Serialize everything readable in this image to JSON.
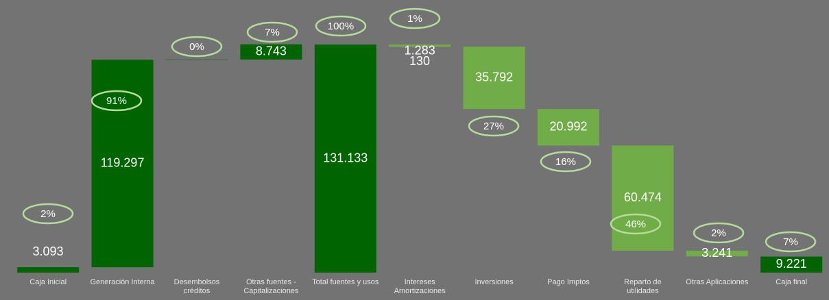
{
  "chart_data": {
    "type": "waterfall",
    "categories": [
      "Caja Inicial",
      "Generación Interna",
      "Desembolsos\ncréditos",
      "Otras fuentes -\nCapitalizaciones",
      "Total fuentes y usos",
      "Intereses\nAmortizaciones",
      "Inversiones",
      "Pago  Imptos",
      "Reparto de\nutilidades",
      "Otras Aplicaciones",
      "Caja final"
    ],
    "values": [
      3093,
      119297,
      130,
      8743,
      131133,
      1283,
      35792,
      20992,
      60474,
      3241,
      9221
    ],
    "value_labels": [
      "3.093",
      "119.297",
      "130",
      "8.743",
      "131.133",
      "1.283",
      "35.792",
      "20.992",
      "60.474",
      "3.241",
      "9.221"
    ],
    "measures": [
      "absolute",
      "increase",
      "increase",
      "increase",
      "absolute",
      "decrease",
      "decrease",
      "decrease",
      "decrease",
      "decrease",
      "absolute"
    ],
    "percent_labels": [
      "2%",
      "91%",
      "0%",
      "7%",
      "100%",
      "1%",
      "27%",
      "16%",
      "46%",
      "2%",
      "7%"
    ],
    "colors": {
      "absolute": "#006400",
      "increase": "#006400",
      "decrease": "#70ad47"
    }
  }
}
